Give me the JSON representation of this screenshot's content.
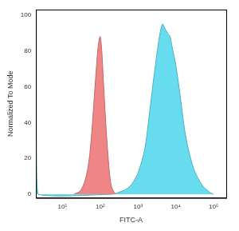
{
  "chart_data": {
    "type": "line",
    "x_label": "FITC-A",
    "y_label": "Normalized To Mode",
    "log": "x",
    "grid": false,
    "xlim": [
      2,
      215000
    ],
    "xticks": [
      {
        "value": 10,
        "label": "10¹"
      },
      {
        "value": 100,
        "label": "10²"
      },
      {
        "value": 1000,
        "label": "10³"
      },
      {
        "value": 10000,
        "label": "10⁴"
      },
      {
        "value": 100000,
        "label": "10⁵"
      }
    ],
    "ylim": [
      -2,
      103
    ],
    "yticks": [
      0,
      20,
      40,
      60,
      80,
      100
    ],
    "series": [
      {
        "color": "#f08585",
        "x": [
          20,
          30,
          40,
          50,
          60,
          70,
          80,
          90,
          100,
          110,
          120,
          140,
          160,
          180,
          200,
          250
        ],
        "values": [
          0,
          2,
          8,
          18,
          35,
          55,
          72,
          84,
          88,
          80,
          65,
          40,
          22,
          10,
          4,
          0
        ]
      },
      {
        "color": "#66dcee",
        "x": [
          2,
          2.3,
          200,
          300,
          500,
          700,
          1000,
          1500,
          2000,
          2500,
          3000,
          3500,
          4000,
          4500,
          5000,
          6000,
          7000,
          8000,
          10000,
          13000,
          16000,
          20000,
          30000,
          50000,
          80000,
          100000
        ],
        "values": [
          30,
          0,
          0,
          1,
          3,
          6,
          12,
          25,
          45,
          62,
          75,
          85,
          92,
          95,
          93,
          90,
          88,
          82,
          72,
          55,
          40,
          28,
          14,
          5,
          1,
          0
        ]
      }
    ]
  }
}
